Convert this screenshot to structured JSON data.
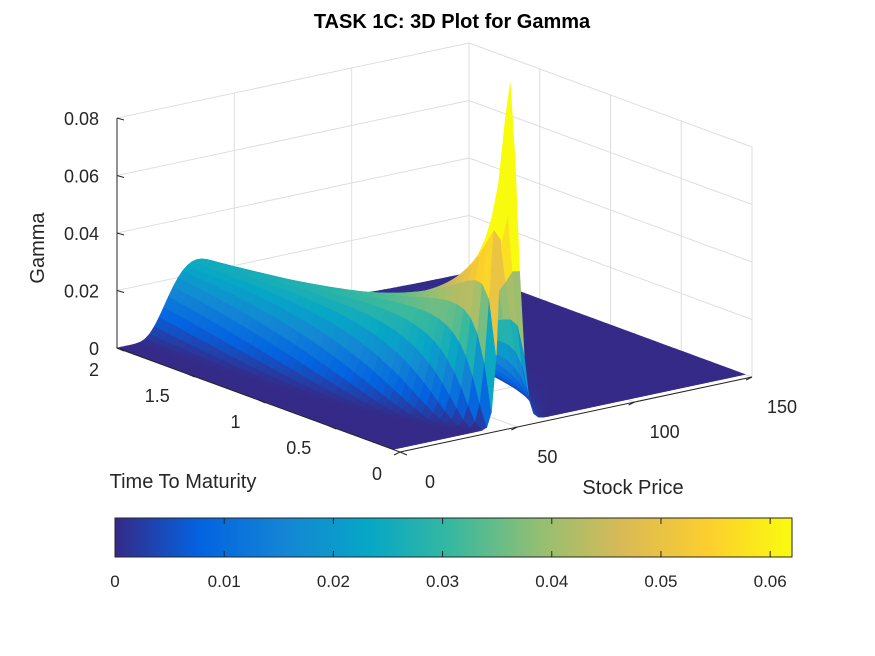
{
  "chart_data": {
    "type": "surface",
    "title": "TASK 1C: 3D Plot for Gamma",
    "xlabel": "Stock Price",
    "ylabel": "Time To Maturity",
    "zlabel": "Gamma",
    "x_ticks": [
      "0",
      "50",
      "100",
      "150"
    ],
    "y_ticks": [
      "0",
      "0.5",
      "1",
      "1.5",
      "2"
    ],
    "z_ticks": [
      "0",
      "0.02",
      "0.04",
      "0.06",
      "0.08"
    ],
    "xlim": [
      0,
      150
    ],
    "ylim": [
      0,
      2
    ],
    "zlim": [
      0,
      0.08
    ],
    "grid": true,
    "colormap": "parula",
    "strike": 50,
    "surface_samples": {
      "stock_price": [
        0,
        10,
        20,
        30,
        40,
        45,
        50,
        55,
        60,
        70,
        80,
        100,
        120,
        150
      ],
      "gamma_at_time_2": [
        0,
        0.0002,
        0.0035,
        0.0168,
        0.0208,
        0.0203,
        0.0192,
        0.0178,
        0.0163,
        0.0132,
        0.0103,
        0.0056,
        0.0027,
        0.0008
      ],
      "gamma_at_time_0.1": [
        0,
        0,
        0,
        0.0005,
        0.0301,
        0.0557,
        0.0603,
        0.0528,
        0.0388,
        0.0132,
        0.0027,
        0,
        0,
        0
      ]
    },
    "colorbar": {
      "location": "bottom",
      "limits": [
        0,
        0.062
      ],
      "ticks": [
        "0",
        "0.01",
        "0.02",
        "0.03",
        "0.04",
        "0.05",
        "0.06"
      ],
      "colors": [
        "#352a87",
        "#0363e1",
        "#1485d4",
        "#06a7c6",
        "#38b99e",
        "#92bf73",
        "#d9ba56",
        "#fcce2e",
        "#f9fb0e"
      ]
    }
  }
}
